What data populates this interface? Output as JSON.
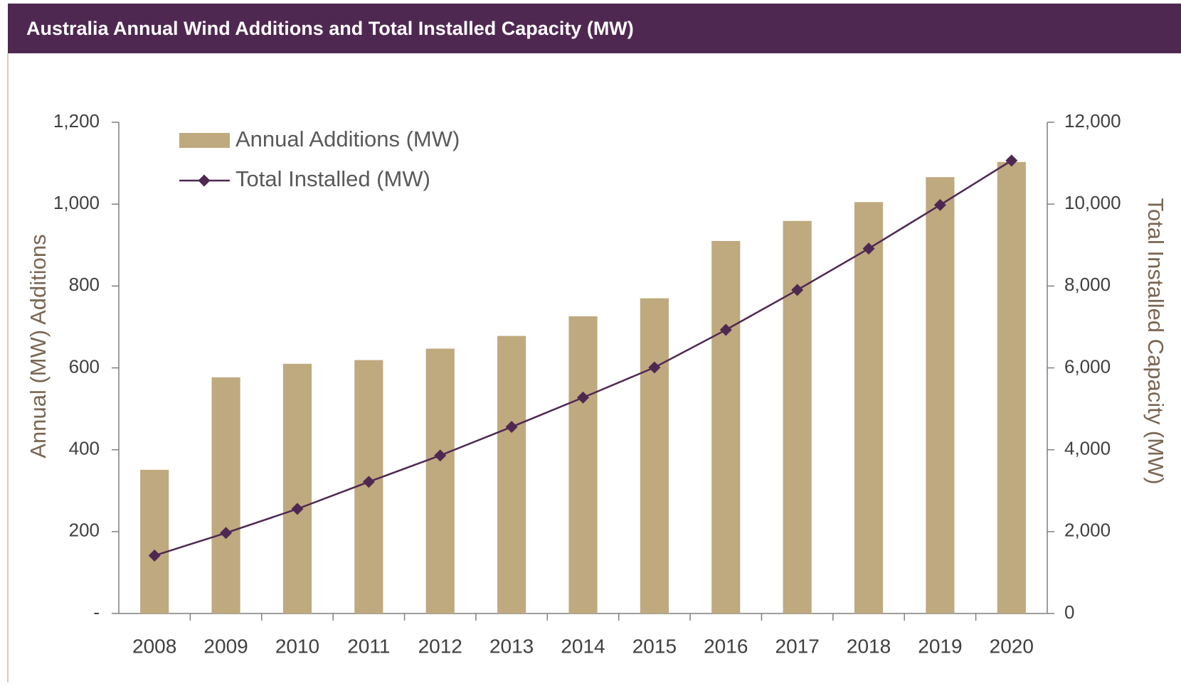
{
  "chart_data": {
    "type": "bar",
    "title": "Australia Annual Wind Additions and Total Installed Capacity (MW)",
    "categories": [
      "2008",
      "2009",
      "2010",
      "2011",
      "2012",
      "2013",
      "2014",
      "2015",
      "2016",
      "2017",
      "2018",
      "2019",
      "2020"
    ],
    "series": [
      {
        "name": "Annual Additions (MW)",
        "type": "bar",
        "color": "#bfa97e",
        "values": [
          351,
          577,
          610,
          619,
          647,
          678,
          726,
          770,
          910,
          959,
          1005,
          1066,
          1103
        ]
      },
      {
        "name": "Total Installed (MW)",
        "type": "line",
        "axis": "y2",
        "color": "#4f2852",
        "values": [
          1415,
          1967,
          2555,
          3216,
          3860,
          4558,
          5275,
          6010,
          6929,
          7903,
          8914,
          9980,
          11065
        ]
      }
    ],
    "ylabel": "Annual (MW) Additions",
    "y2label": "Total Installed Capacity (MW)",
    "ylim": [
      0,
      1200
    ],
    "yticks": [
      {
        "value": 0,
        "label": "-"
      },
      200,
      400,
      600,
      800,
      {
        "value": 1000,
        "label": "1,000"
      },
      {
        "value": 1200,
        "label": "1,200"
      }
    ],
    "y2lim": [
      0,
      12000
    ],
    "y2ticks": [
      0,
      {
        "value": 2000,
        "label": "2,000"
      },
      {
        "value": 4000,
        "label": "4,000"
      },
      {
        "value": 6000,
        "label": "6,000"
      },
      {
        "value": 8000,
        "label": "8,000"
      },
      {
        "value": 10000,
        "label": "10,000"
      },
      {
        "value": 12000,
        "label": "12,000"
      }
    ],
    "legend": "upper left",
    "grid": false
  }
}
